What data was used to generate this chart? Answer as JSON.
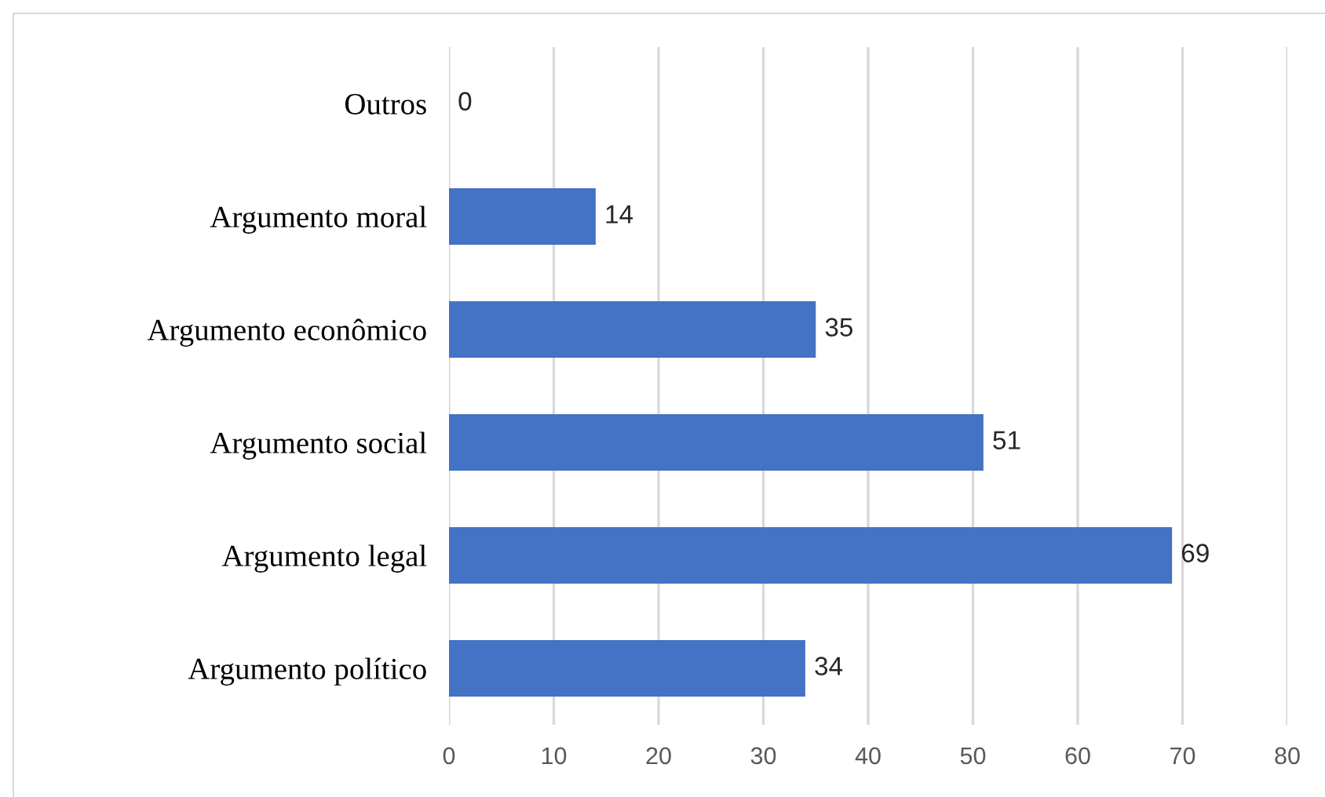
{
  "chart_data": {
    "type": "bar",
    "orientation": "horizontal",
    "categories": [
      "Outros",
      "Argumento moral",
      "Argumento econômico",
      "Argumento social",
      "Argumento legal",
      "Argumento político"
    ],
    "values": [
      0,
      14,
      35,
      51,
      69,
      34
    ],
    "color": "#4472c4",
    "xlim": [
      0,
      80
    ],
    "xticks": [
      0,
      10,
      20,
      30,
      40,
      50,
      60,
      70,
      80
    ],
    "grid": "x",
    "data_labels": true
  }
}
